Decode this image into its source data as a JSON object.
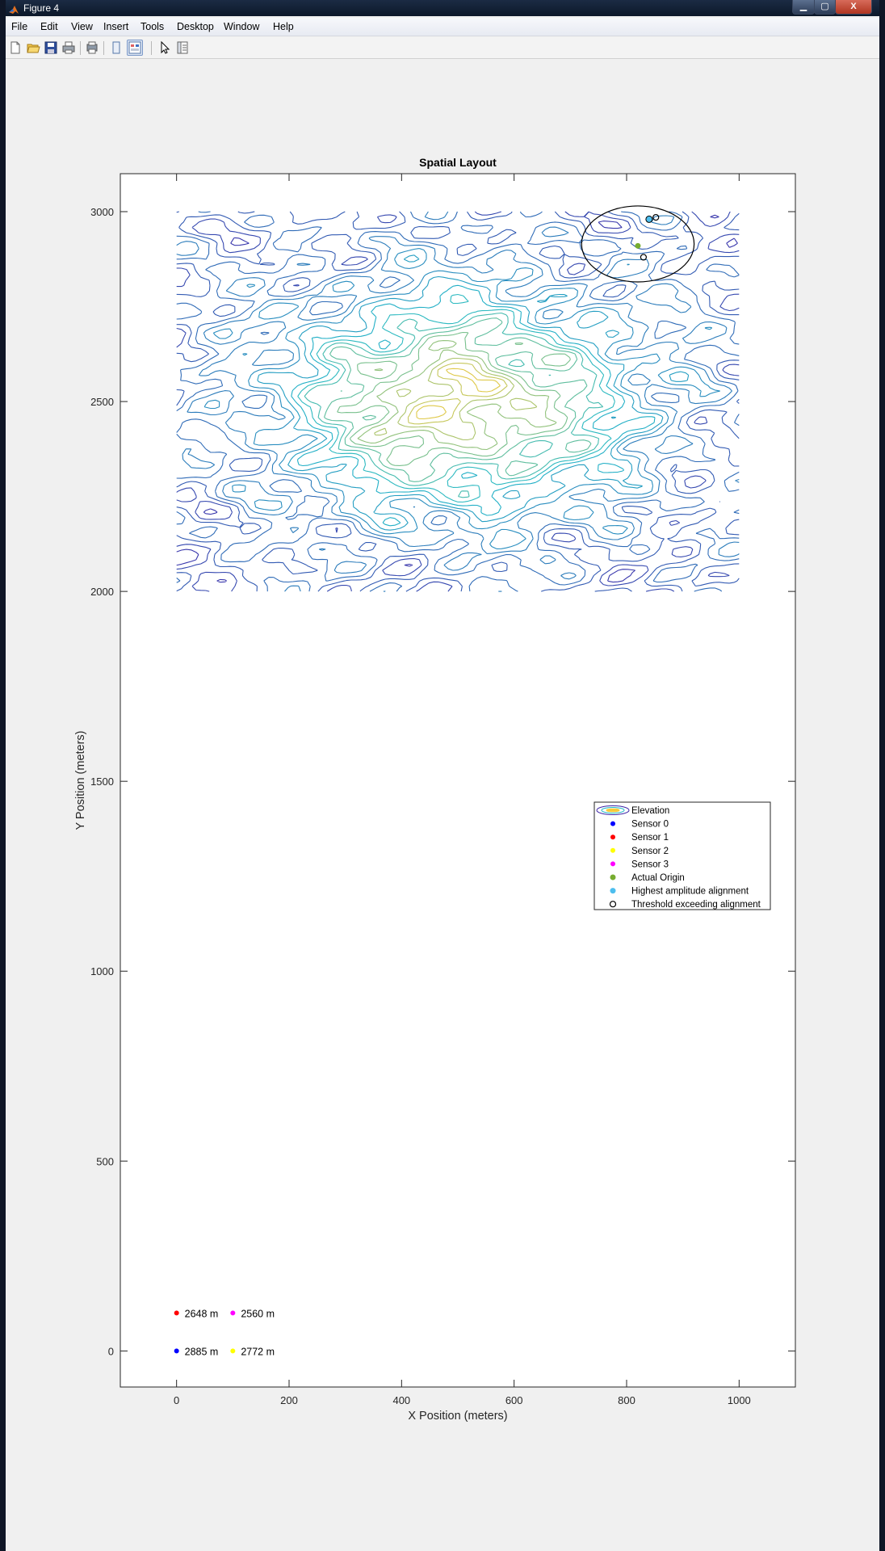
{
  "window": {
    "title": "Figure 4",
    "minimize_glyph": "▁",
    "maximize_glyph": "▢",
    "close_glyph": "X"
  },
  "menu": [
    "File",
    "Edit",
    "View",
    "Insert",
    "Tools",
    "Desktop",
    "Window",
    "Help"
  ],
  "toolbar": [
    "new-figure-icon",
    "open-file-icon",
    "save-icon",
    "print-icon",
    "print-preview-icon",
    "hide-toolbar-icon",
    "show-plot-tools-icon",
    "pointer-icon",
    "plot-browser-icon"
  ],
  "colors": {
    "sensor0": "#0000ff",
    "sensor1": "#ff0000",
    "sensor2": "#ffff00",
    "sensor3": "#ff00ff",
    "actual_origin": "#77ac30",
    "highest_amplitude": "#4dbeee",
    "contour_low": "#3d26a8",
    "contour_mid": "#1fb8c8",
    "contour_high": "#f9cb38"
  },
  "chart_data": {
    "type": "scatter",
    "title": "Spatial Layout",
    "xlabel": "X Position (meters)",
    "ylabel": "Y Position (meters)",
    "xlim": [
      -100,
      1100
    ],
    "ylim": [
      -95,
      3100
    ],
    "xticks": [
      0,
      200,
      400,
      600,
      800,
      1000
    ],
    "yticks": [
      0,
      500,
      1000,
      1500,
      2000,
      2500,
      3000
    ],
    "grid": false,
    "legend_location": "right",
    "legend": [
      "Elevation",
      "Sensor 0",
      "Sensor 1",
      "Sensor 2",
      "Sensor 3",
      "Actual Origin",
      "Highest amplitude alignment",
      "Threshold exceeding alignment"
    ],
    "elevation": {
      "type": "contour",
      "x_range": [
        0,
        1000
      ],
      "y_range": [
        2000,
        3000
      ],
      "peak": [
        500,
        2500
      ],
      "levels": 16
    },
    "sensors": [
      {
        "name": "Sensor 0",
        "x": 0,
        "y": 0,
        "label": "2885 m",
        "color": "#0000ff"
      },
      {
        "name": "Sensor 1",
        "x": 0,
        "y": 100,
        "label": "2648 m",
        "color": "#ff0000"
      },
      {
        "name": "Sensor 2",
        "x": 100,
        "y": 0,
        "label": "2772 m",
        "color": "#ffff00"
      },
      {
        "name": "Sensor 3",
        "x": 100,
        "y": 100,
        "label": "2560 m",
        "color": "#ff00ff"
      }
    ],
    "actual_origin": {
      "x": 820,
      "y": 2910
    },
    "highest_amplitude_alignment": {
      "x": 840,
      "y": 2980
    },
    "threshold_exceeding_alignment": [
      {
        "x": 852,
        "y": 2985
      },
      {
        "x": 830,
        "y": 2880
      }
    ],
    "uncertainty_ellipse": {
      "cx": 820,
      "cy": 2915,
      "rx": 100,
      "ry": 100
    }
  }
}
